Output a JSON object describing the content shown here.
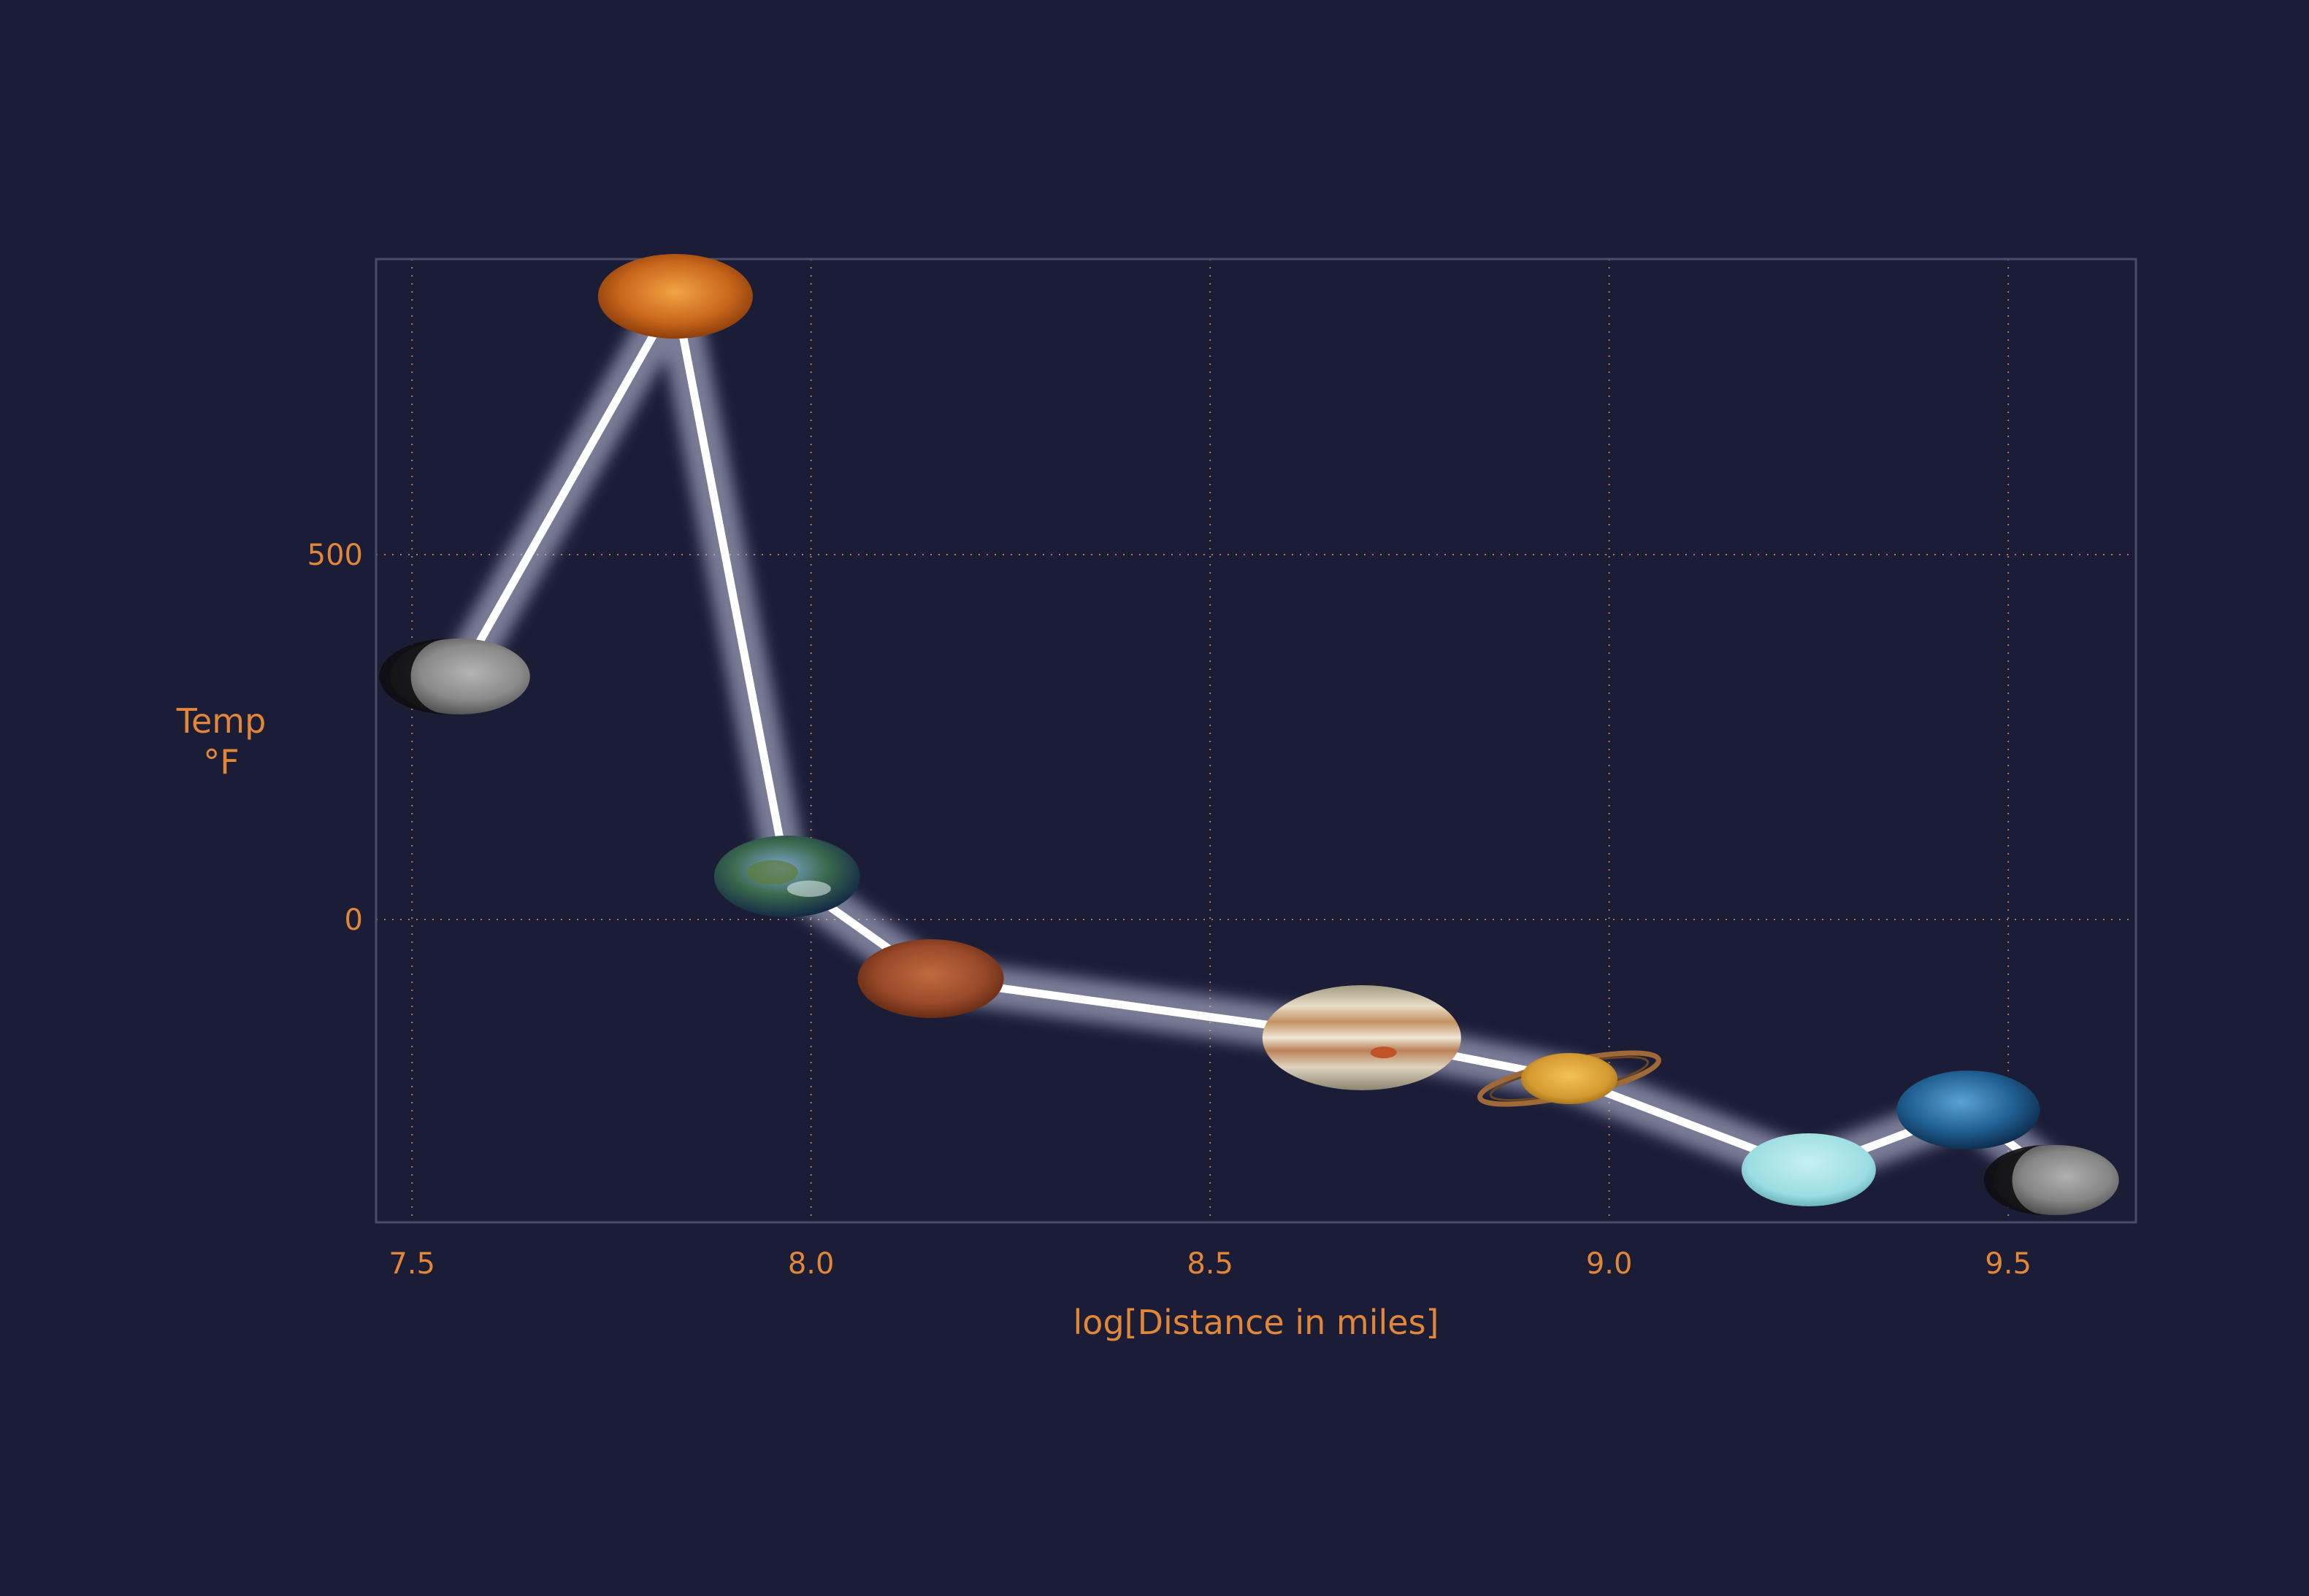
{
  "chart_data": {
    "type": "line",
    "title": "",
    "xlabel": "log[Distance in miles]",
    "ylabel_lines": [
      "Temp",
      "°F"
    ],
    "xlim": [
      7.455,
      9.66
    ],
    "ylim": [
      -415,
      905
    ],
    "x_ticks": [
      7.5,
      8.0,
      8.5,
      9.0,
      9.5
    ],
    "x_tick_labels": [
      "7.5",
      "8.0",
      "8.5",
      "9.0",
      "9.5"
    ],
    "y_ticks": [
      0,
      500
    ],
    "y_tick_labels": [
      "0",
      "500"
    ],
    "grid": true,
    "legend": "none",
    "series": [
      {
        "points": [
          {
            "planet": "mercury",
            "x": 7.56,
            "y": 333
          },
          {
            "planet": "venus",
            "x": 7.83,
            "y": 854
          },
          {
            "planet": "earth",
            "x": 7.97,
            "y": 59
          },
          {
            "planet": "mars",
            "x": 8.15,
            "y": -81
          },
          {
            "planet": "jupiter",
            "x": 8.69,
            "y": -162
          },
          {
            "planet": "saturn",
            "x": 8.95,
            "y": -218
          },
          {
            "planet": "uranus",
            "x": 9.25,
            "y": -343
          },
          {
            "planet": "neptune",
            "x": 9.45,
            "y": -261
          },
          {
            "planet": "pluto",
            "x": 9.56,
            "y": -357
          }
        ]
      }
    ]
  },
  "colors": {
    "background": "#1b1d37",
    "text": "#e28638",
    "grid": "#b07a55",
    "frame": "#4a4d68",
    "line": "#ffffff"
  }
}
